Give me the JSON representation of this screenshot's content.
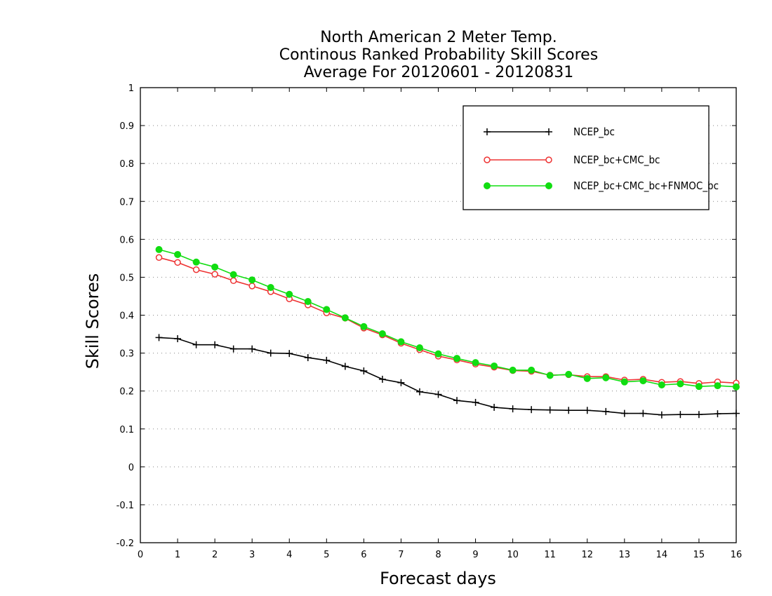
{
  "chart_data": {
    "type": "line",
    "title": [
      "North American 2 Meter Temp.",
      "Continous Ranked Probability Skill Scores",
      "Average For 20120601 - 20120831"
    ],
    "xlabel": "Forecast days",
    "ylabel": "Skill Scores",
    "xlim": [
      0,
      16
    ],
    "ylim": [
      -0.2,
      1
    ],
    "xticks": [
      "0",
      "1",
      "2",
      "3",
      "4",
      "5",
      "6",
      "7",
      "8",
      "9",
      "10",
      "11",
      "12",
      "13",
      "14",
      "15",
      "16"
    ],
    "yticks": [
      "-0.2",
      "-0.1",
      "0",
      "0.1",
      "0.2",
      "0.3",
      "0.4",
      "0.5",
      "0.6",
      "0.7",
      "0.8",
      "0.9",
      "1"
    ],
    "grid": "horizontal dotted",
    "legend_position": "top-right",
    "x": [
      0.5,
      1,
      1.5,
      2,
      2.5,
      3,
      3.5,
      4,
      4.5,
      5,
      5.5,
      6,
      6.5,
      7,
      7.5,
      8,
      8.5,
      9,
      9.5,
      10,
      10.5,
      11,
      11.5,
      12,
      12.5,
      13,
      13.5,
      14,
      14.5,
      15,
      15.5,
      16
    ],
    "series": [
      {
        "name": "NCEP_bc",
        "color": "#000000",
        "marker": "plus",
        "values": [
          0.341,
          0.338,
          0.322,
          0.322,
          0.311,
          0.311,
          0.3,
          0.299,
          0.288,
          0.281,
          0.265,
          0.253,
          0.231,
          0.222,
          0.198,
          0.191,
          0.175,
          0.17,
          0.157,
          0.153,
          0.151,
          0.15,
          0.149,
          0.149,
          0.146,
          0.141,
          0.141,
          0.137,
          0.138,
          0.138,
          0.14,
          0.141
        ]
      },
      {
        "name": "NCEP_bc+CMC_bc",
        "color": "#ee3333",
        "marker": "open-circle",
        "values": [
          0.552,
          0.539,
          0.52,
          0.508,
          0.491,
          0.477,
          0.462,
          0.443,
          0.427,
          0.406,
          0.392,
          0.366,
          0.348,
          0.326,
          0.309,
          0.292,
          0.282,
          0.271,
          0.263,
          0.254,
          0.252,
          0.242,
          0.243,
          0.238,
          0.238,
          0.229,
          0.231,
          0.223,
          0.225,
          0.22,
          0.224,
          0.221
        ]
      },
      {
        "name": "NCEP_bc+CMC_bc+FNMOC_bc",
        "color": "#11dd11",
        "marker": "filled-circle",
        "values": [
          0.573,
          0.56,
          0.54,
          0.527,
          0.507,
          0.493,
          0.473,
          0.455,
          0.436,
          0.415,
          0.393,
          0.37,
          0.351,
          0.33,
          0.314,
          0.298,
          0.286,
          0.275,
          0.266,
          0.255,
          0.255,
          0.241,
          0.244,
          0.233,
          0.235,
          0.224,
          0.227,
          0.216,
          0.219,
          0.212,
          0.214,
          0.211
        ]
      }
    ]
  }
}
